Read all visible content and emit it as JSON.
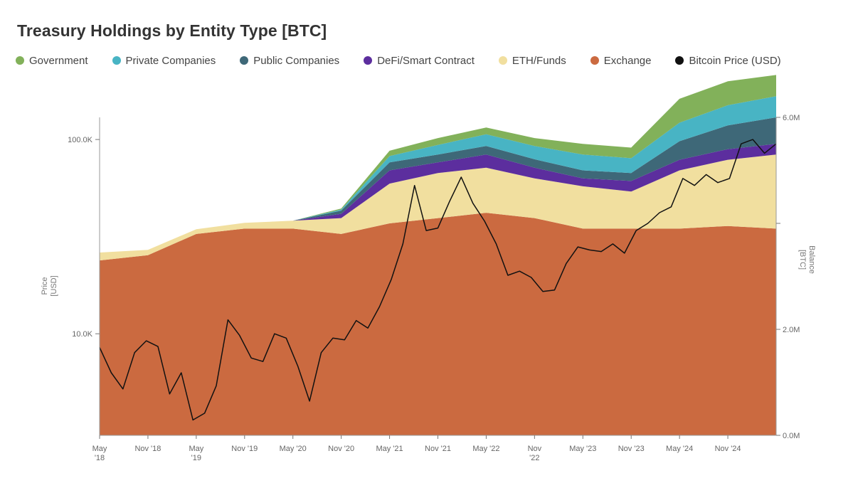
{
  "title": "Treasury Holdings by Entity Type [BTC]",
  "legend": [
    {
      "label": "Government",
      "color": "#82b15a"
    },
    {
      "label": "Private Companies",
      "color": "#48b4c4"
    },
    {
      "label": "Public Companies",
      "color": "#3e6878"
    },
    {
      "label": "DeFi/Smart Contract",
      "color": "#5c2e9e"
    },
    {
      "label": "ETH/Funds",
      "color": "#f1df9f"
    },
    {
      "label": "Exchange",
      "color": "#cb6a40"
    },
    {
      "label": "Bitcoin Price (USD)",
      "color": "#111111"
    }
  ],
  "chart_data": {
    "type": "area",
    "title": "Treasury Holdings by Entity Type [BTC]",
    "x_dates": [
      "2018-05",
      "2018-11",
      "2019-05",
      "2019-11",
      "2020-05",
      "2020-11",
      "2021-05",
      "2021-11",
      "2022-05",
      "2022-11",
      "2023-05",
      "2023-11",
      "2024-05",
      "2024-11",
      "2025-05"
    ],
    "x_tick_labels": [
      [
        "May",
        "'18"
      ],
      [
        "Nov '18"
      ],
      [
        "May",
        "'19"
      ],
      [
        "Nov '19"
      ],
      [
        "May '20"
      ],
      [
        "Nov '20"
      ],
      [
        "May '21"
      ],
      [
        "Nov '21"
      ],
      [
        "May '22"
      ],
      [
        "Nov",
        "'22"
      ],
      [
        "May '23"
      ],
      [
        "Nov '23"
      ],
      [
        "May '24"
      ],
      [
        "Nov '24"
      ]
    ],
    "y_left": {
      "label": "Price\n[USD]",
      "scale": "log",
      "ticks": [
        10000,
        100000
      ],
      "tick_labels": [
        "10.0K",
        "100.0K"
      ],
      "range": [
        3000,
        130000
      ]
    },
    "y_right": {
      "label": "Balance\n[BTC]",
      "scale": "linear",
      "ticks": [
        0,
        2000000,
        6000000
      ],
      "tick_labels": [
        "0.0M",
        "2.0M",
        "6.0M"
      ],
      "range": [
        0,
        6000000
      ]
    },
    "series": [
      {
        "name": "Exchange",
        "values": [
          3300000,
          3400000,
          3800000,
          3900000,
          3900000,
          3800000,
          4000000,
          4100000,
          4200000,
          4100000,
          3900000,
          3900000,
          3900000,
          3950000,
          3900000
        ]
      },
      {
        "name": "ETH/Funds",
        "values": [
          150000,
          100000,
          90000,
          110000,
          150000,
          300000,
          750000,
          850000,
          850000,
          750000,
          800000,
          700000,
          1100000,
          1250000,
          1400000
        ]
      },
      {
        "name": "DeFi/Smart Contract",
        "values": [
          0,
          0,
          0,
          0,
          0,
          80000,
          250000,
          200000,
          250000,
          200000,
          150000,
          200000,
          200000,
          200000,
          200000
        ]
      },
      {
        "name": "Public Companies",
        "values": [
          0,
          0,
          0,
          0,
          0,
          60000,
          150000,
          150000,
          160000,
          160000,
          150000,
          150000,
          350000,
          450000,
          500000
        ]
      },
      {
        "name": "Private Companies",
        "values": [
          0,
          0,
          0,
          0,
          0,
          20000,
          120000,
          180000,
          220000,
          250000,
          300000,
          280000,
          350000,
          380000,
          400000
        ]
      },
      {
        "name": "Government",
        "values": [
          0,
          0,
          0,
          0,
          0,
          20000,
          100000,
          130000,
          130000,
          150000,
          200000,
          200000,
          450000,
          450000,
          400000
        ]
      }
    ],
    "price_series": {
      "name": "Bitcoin Price (USD)",
      "values": [
        8500,
        6300,
        5200,
        8000,
        9200,
        8600,
        4900,
        6300,
        3600,
        3900,
        5400,
        11800,
        9800,
        7500,
        7200,
        10000,
        9500,
        6800,
        4500,
        8000,
        9500,
        9300,
        11700,
        10700,
        13800,
        19000,
        29000,
        58000,
        34000,
        35000,
        48000,
        64000,
        47000,
        38000,
        29000,
        20000,
        21000,
        19500,
        16500,
        16800,
        23000,
        28000,
        27000,
        26500,
        29000,
        26000,
        34000,
        37000,
        42000,
        45000,
        63000,
        58000,
        66000,
        60000,
        63000,
        95000,
        100000,
        85000,
        95000
      ]
    }
  }
}
